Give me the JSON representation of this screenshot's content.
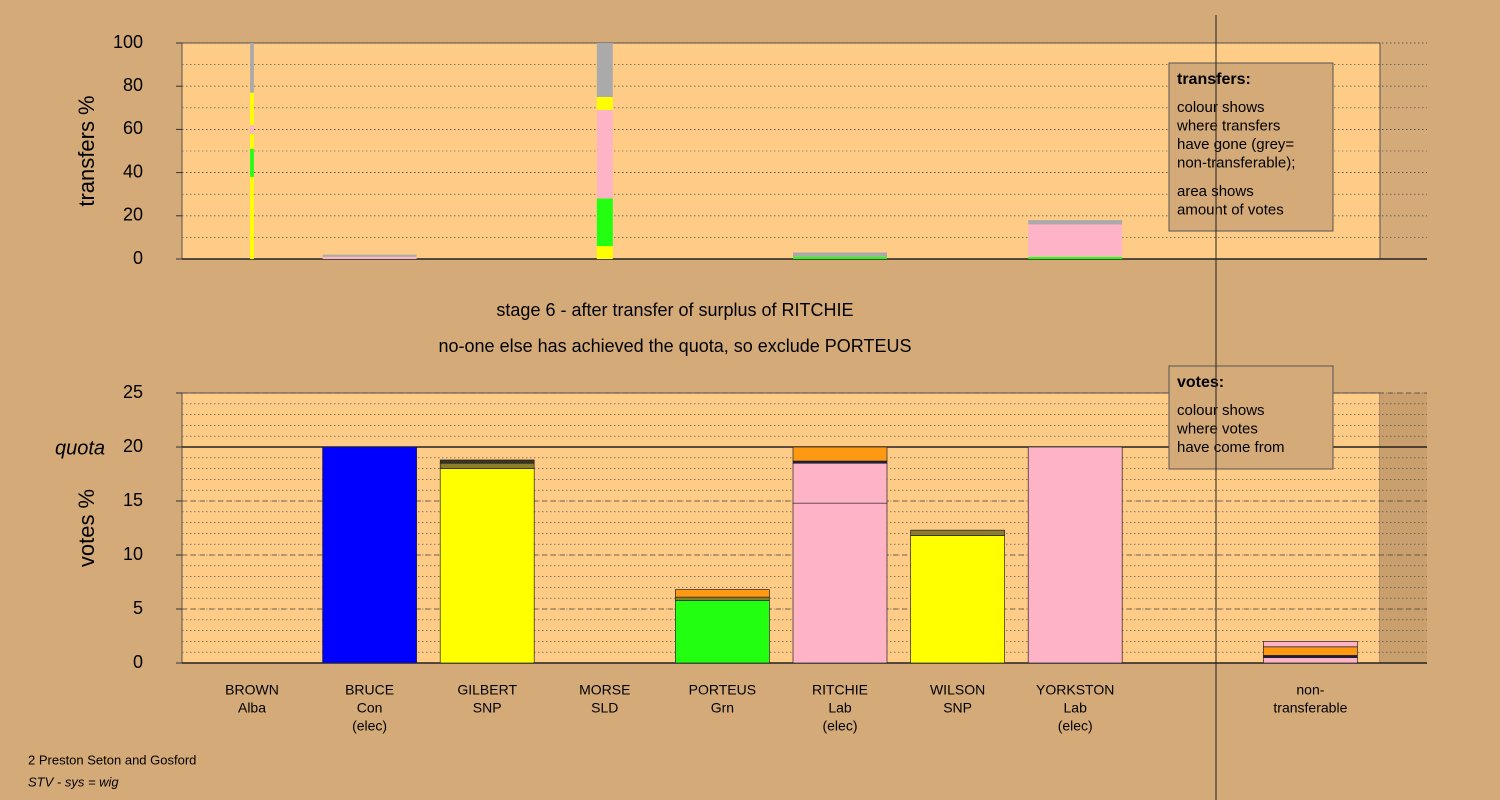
{
  "chart_data": [
    {
      "type": "bar",
      "stacked": true,
      "ylabel": "transfers %",
      "ylim": [
        0,
        100
      ],
      "yticks": [
        0,
        20,
        40,
        60,
        80,
        100
      ],
      "grid_minor_step": 10,
      "legend": {
        "title": "transfers:",
        "paragraphs": [
          [
            "colour shows",
            "where transfers",
            "have gone (grey=",
            "non-transferable);"
          ],
          [
            "area shows",
            "amount of votes"
          ]
        ]
      },
      "widths": [
        0.04,
        1,
        0,
        0.17,
        0,
        1,
        0,
        1,
        0,
        0
      ],
      "columns": [
        [
          {
            "color": "#ffff00",
            "value": 38
          },
          {
            "color": "#22ff11",
            "value": 13
          },
          {
            "color": "#ffff00",
            "value": 7
          },
          {
            "color": "#ffb3c6",
            "value": 4
          },
          {
            "color": "#ffff00",
            "value": 15
          },
          {
            "color": "#aaaaaa",
            "value": 23
          }
        ],
        [
          {
            "color": "#ffb3c6",
            "value": 1
          },
          {
            "color": "#aaaaaa",
            "value": 1
          }
        ],
        [],
        [
          {
            "color": "#ffff00",
            "value": 6
          },
          {
            "color": "#22ff11",
            "value": 22
          },
          {
            "color": "#ffb3c6",
            "value": 41
          },
          {
            "color": "#ffff00",
            "value": 6
          },
          {
            "color": "#aaaaaa",
            "value": 25
          }
        ],
        [],
        [
          {
            "color": "#22ff11",
            "value": 1
          },
          {
            "color": "#aaaaaa",
            "value": 2
          }
        ],
        [],
        [
          {
            "color": "#22ff11",
            "value": 1
          },
          {
            "color": "#ffb3c6",
            "value": 15
          },
          {
            "color": "#aaaaaa",
            "value": 2
          }
        ],
        [],
        []
      ]
    },
    {
      "type": "bar",
      "stacked": true,
      "ylabel": "votes %",
      "ylim": [
        0,
        25
      ],
      "yticks": [
        0,
        5,
        10,
        15,
        20,
        25
      ],
      "grid_minor_step": 1,
      "quota": {
        "value": 20,
        "label": "quota"
      },
      "legend": {
        "title": "votes:",
        "paragraphs": [
          [
            "colour shows",
            "where votes",
            "have come from"
          ]
        ]
      },
      "categories": [
        [
          "BROWN",
          "Alba"
        ],
        [
          "BRUCE",
          "Con",
          "(elec)"
        ],
        [
          "GILBERT",
          "SNP"
        ],
        [
          "MORSE",
          "SLD"
        ],
        [
          "PORTEUS",
          "Grn"
        ],
        [
          "RITCHIE",
          "Lab",
          "(elec)"
        ],
        [
          "WILSON",
          "SNP"
        ],
        [
          "YORKSTON",
          "Lab",
          "(elec)"
        ],
        null,
        [
          "non-",
          "transferable"
        ]
      ],
      "columns": [
        [
          {
            "color": "#ffff00",
            "value": 0
          }
        ],
        [
          {
            "color": "#0000ff",
            "value": 20
          }
        ],
        [
          {
            "color": "#ffff00",
            "value": 18
          },
          {
            "color": "#8b7d2a",
            "value": 0.5
          },
          {
            "color": "#3a3520",
            "value": 0.3
          }
        ],
        [
          {
            "color": "#ffb3c6",
            "value": 0
          }
        ],
        [
          {
            "color": "#22ff11",
            "value": 5.8
          },
          {
            "color": "#8b7d2a",
            "value": 0.3
          },
          {
            "color": "#ff9911",
            "value": 0.7
          }
        ],
        [
          {
            "color": "#ffb3c6",
            "value": 14.8
          },
          {
            "color": "#ffb3c6",
            "value": 3.7
          },
          {
            "color": "#1a1a4a",
            "value": 0.2
          },
          {
            "color": "#ff9911",
            "value": 1.3
          }
        ],
        [
          {
            "color": "#ffff00",
            "value": 11.8
          },
          {
            "color": "#8b7d2a",
            "value": 0.5
          }
        ],
        [
          {
            "color": "#ffb3c6",
            "value": 20
          }
        ],
        [
          {
            "color": "#ffb3c6",
            "value": 0
          }
        ],
        [
          {
            "color": "#ffb3c6",
            "value": 0.5
          },
          {
            "color": "#1a1a4a",
            "value": 0.2
          },
          {
            "color": "#ff9911",
            "value": 0.8
          },
          {
            "color": "#ffb3c6",
            "value": 0.5
          }
        ]
      ]
    }
  ],
  "notes": [
    "stage 6 - after transfer of surplus of RITCHIE",
    "no-one else has achieved the quota, so exclude PORTEUS"
  ],
  "footer": {
    "ward": "2 Preston Seton and Gosford",
    "system": "STV - sys = wig"
  }
}
